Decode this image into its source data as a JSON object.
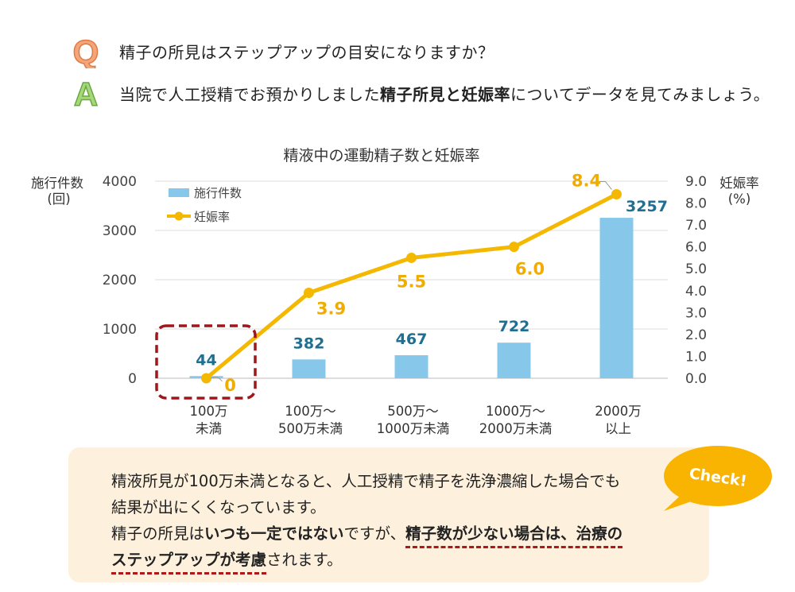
{
  "question": {
    "mark": "Q",
    "text": "精子の所見はステップアップの目安になりますか？"
  },
  "answer": {
    "mark": "A",
    "text_pre": "当院で人工授精でお預かりしました",
    "text_bold": "精子所見と妊娠率",
    "text_post": "についてデータを見てみましょう。"
  },
  "chart_data": {
    "type": "bar+line",
    "title": "精液中の運動精子数と妊娠率",
    "categories": [
      [
        "100万",
        "未満"
      ],
      [
        "100万～",
        "500万未満"
      ],
      [
        "500万～",
        "1000万未満"
      ],
      [
        "1000万～",
        "2000万未満"
      ],
      [
        "2000万",
        "以上"
      ]
    ],
    "series": [
      {
        "name": "施行件数",
        "type": "bar",
        "axis": "left",
        "values": [
          44,
          382,
          467,
          722,
          3257
        ],
        "labels": [
          "44",
          "382",
          "467",
          "722",
          "3257"
        ]
      },
      {
        "name": "妊娠率",
        "type": "line",
        "axis": "right",
        "values": [
          0,
          3.9,
          5.5,
          6.0,
          8.4
        ],
        "labels": [
          "0",
          "3.9",
          "5.5",
          "6.0",
          "8.4"
        ]
      }
    ],
    "y_left": {
      "label_line1": "施行件数",
      "label_line2": "(回)",
      "ylim": [
        0,
        4000
      ],
      "ticks": [
        "0",
        "1000",
        "2000",
        "3000",
        "4000"
      ]
    },
    "y_right": {
      "label_line1": "妊娠率",
      "label_line2": "(%)",
      "ylim": [
        0,
        9
      ],
      "ticks": [
        "0.0",
        "1.0",
        "2.0",
        "3.0",
        "4.0",
        "5.0",
        "6.0",
        "7.0",
        "8.0",
        "9.0"
      ]
    },
    "legend": [
      "施行件数",
      "妊娠率"
    ],
    "legend_position": "top-left",
    "grid": true,
    "highlight_category": 0
  },
  "note": {
    "line1": "精液所見が100万未満となると、人工授精で精子を洗浄濃縮した場合でも",
    "line2": "結果が出にくくなっています。",
    "line3_pre": "精子の所見は",
    "line3_bold1": "いつも一定ではない",
    "line3_mid": "ですが、",
    "line3_bold2": "精子数が少ない場合は、治療の",
    "line4_bold": "ステップアップが考慮",
    "line4_post": "されます。"
  },
  "check_badge": "Check!",
  "colors": {
    "bar": "#87c8ea",
    "bar_label": "#1f6f93",
    "line": "#f5b800",
    "line_label": "#f0ac00",
    "highlight": "#a0161c",
    "note_bg": "#fdf0dc",
    "badge": "#f8b400"
  }
}
